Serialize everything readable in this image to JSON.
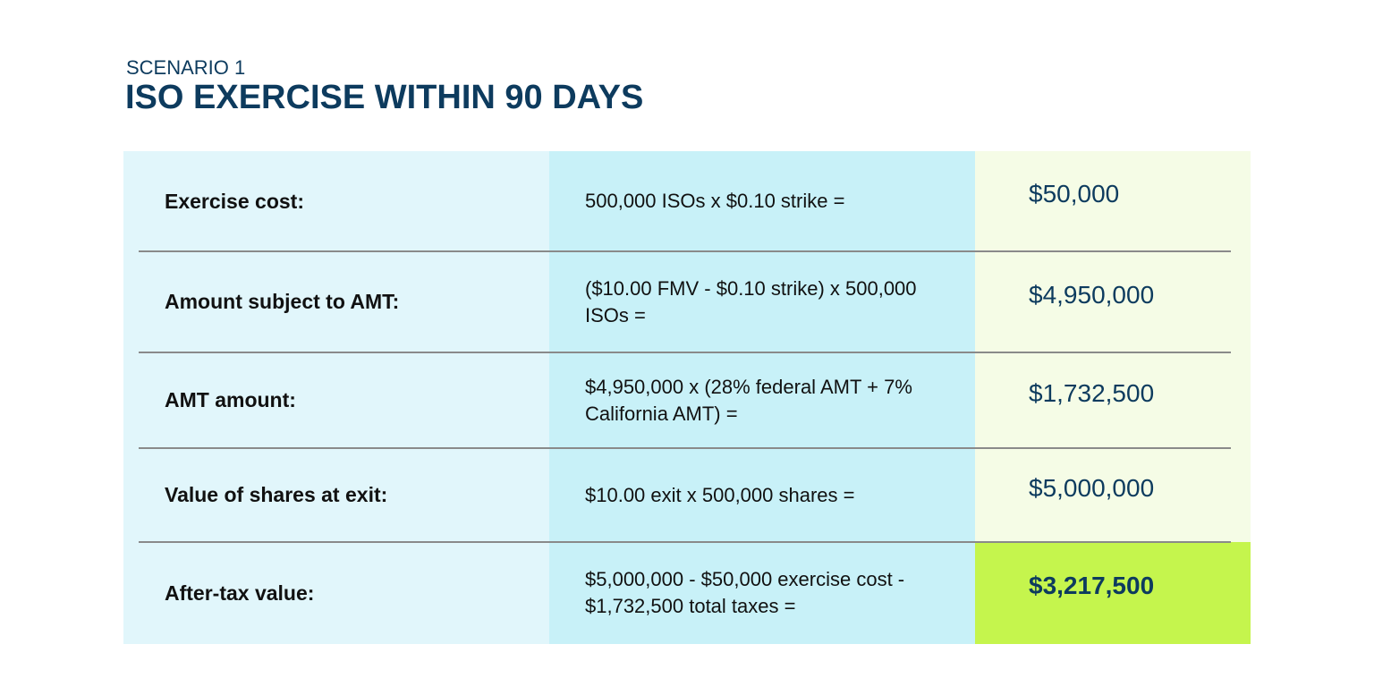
{
  "header": {
    "eyebrow": "SCENARIO 1",
    "title": "ISO EXERCISE WITHIN 90 DAYS"
  },
  "table": {
    "rows": [
      [
        "Exercise cost:",
        "500,000 ISOs x $0.10 strike =",
        "$50,000"
      ],
      [
        "Amount subject to AMT:",
        "($10.00 FMV - $0.10 strike) x 500,000 ISOs =",
        "$4,950,000"
      ],
      [
        "AMT amount:",
        "$4,950,000 x (28% federal AMT + 7% California AMT) =",
        "$1,732,500"
      ],
      [
        "Value of shares at exit:",
        "$10.00 exit x 500,000 shares =",
        "$5,000,000"
      ],
      [
        "After-tax value:",
        "$5,000,000 - $50,000 exercise cost - $1,732,500 total taxes =",
        "$3,217,500"
      ]
    ]
  }
}
